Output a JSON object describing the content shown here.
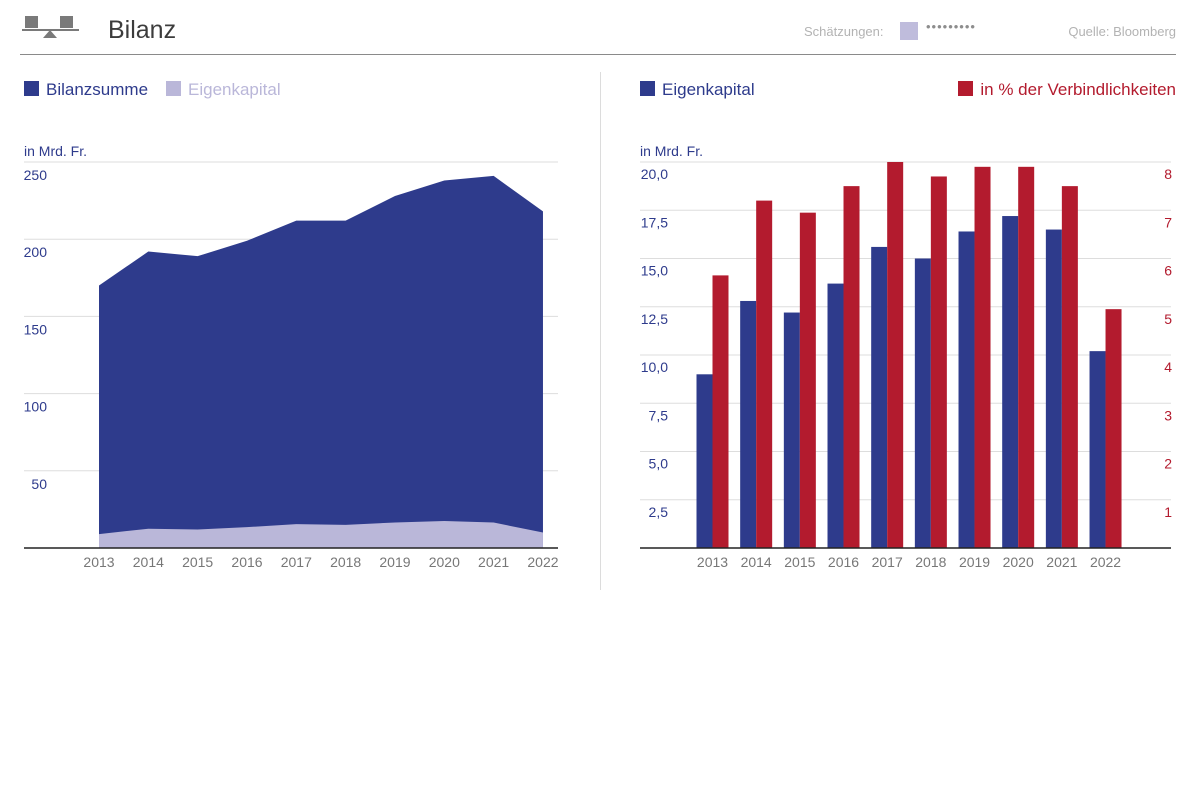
{
  "header": {
    "title": "Bilanz",
    "estimates_label": "Schätzungen:",
    "estimates_dots": "•••••••••",
    "source": "Quelle: Bloomberg"
  },
  "colors": {
    "navy": "#2e3b8c",
    "lavender": "#bab7d9",
    "red": "#b31b2e",
    "axis_text_blue": "#2e3b8c",
    "axis_text_red": "#b31b2e",
    "tick_text_gray": "#777777"
  },
  "chart_data": [
    {
      "type": "area",
      "title": "Bilanz",
      "ylabel": "in Mrd. Fr.",
      "xlabel": "",
      "ylim": [
        0,
        250
      ],
      "yticks": [
        50,
        100,
        150,
        200,
        250
      ],
      "ytick_labels": [
        "50",
        "100",
        "150",
        "200",
        "250"
      ],
      "categories": [
        "2013",
        "2014",
        "2015",
        "2016",
        "2017",
        "2018",
        "2019",
        "2020",
        "2021",
        "2022"
      ],
      "series": [
        {
          "name": "Bilanzsumme",
          "color": "#2e3b8c",
          "values": [
            170,
            192,
            189,
            199,
            212,
            212,
            228,
            238,
            241,
            218
          ]
        },
        {
          "name": "Eigenkapital",
          "color": "#bab7d9",
          "values": [
            9,
            12.5,
            12,
            13.5,
            15.5,
            15,
            16.5,
            17.5,
            16.5,
            10
          ]
        }
      ],
      "legend": "top-left"
    },
    {
      "type": "bar",
      "ylabel": "in Mrd. Fr.",
      "xlabel": "",
      "ylim": [
        0,
        20
      ],
      "yticks": [
        2.5,
        5,
        7.5,
        10,
        12.5,
        15,
        17.5,
        20
      ],
      "ytick_labels": [
        "2,5",
        "5,0",
        "7,5",
        "10,0",
        "12,5",
        "15,0",
        "17,5",
        "20,0"
      ],
      "y2lim": [
        0,
        8
      ],
      "y2ticks": [
        1,
        2,
        3,
        4,
        5,
        6,
        7,
        8
      ],
      "y2tick_labels": [
        "1",
        "2",
        "3",
        "4",
        "5",
        "6",
        "7",
        "8"
      ],
      "categories": [
        "2013",
        "2014",
        "2015",
        "2016",
        "2017",
        "2018",
        "2019",
        "2020",
        "2021",
        "2022"
      ],
      "series": [
        {
          "name": "Eigenkapital",
          "axis": "left",
          "color": "#2e3b8c",
          "values": [
            9.0,
            12.8,
            12.2,
            13.7,
            15.6,
            15.0,
            16.4,
            17.2,
            16.5,
            10.2
          ]
        },
        {
          "name": "in % der Verbindlichkeiten",
          "axis": "right",
          "color": "#b31b2e",
          "values": [
            5.65,
            7.2,
            6.95,
            7.5,
            8.0,
            7.7,
            7.9,
            7.9,
            7.5,
            4.95
          ]
        }
      ],
      "legend": "top"
    }
  ]
}
